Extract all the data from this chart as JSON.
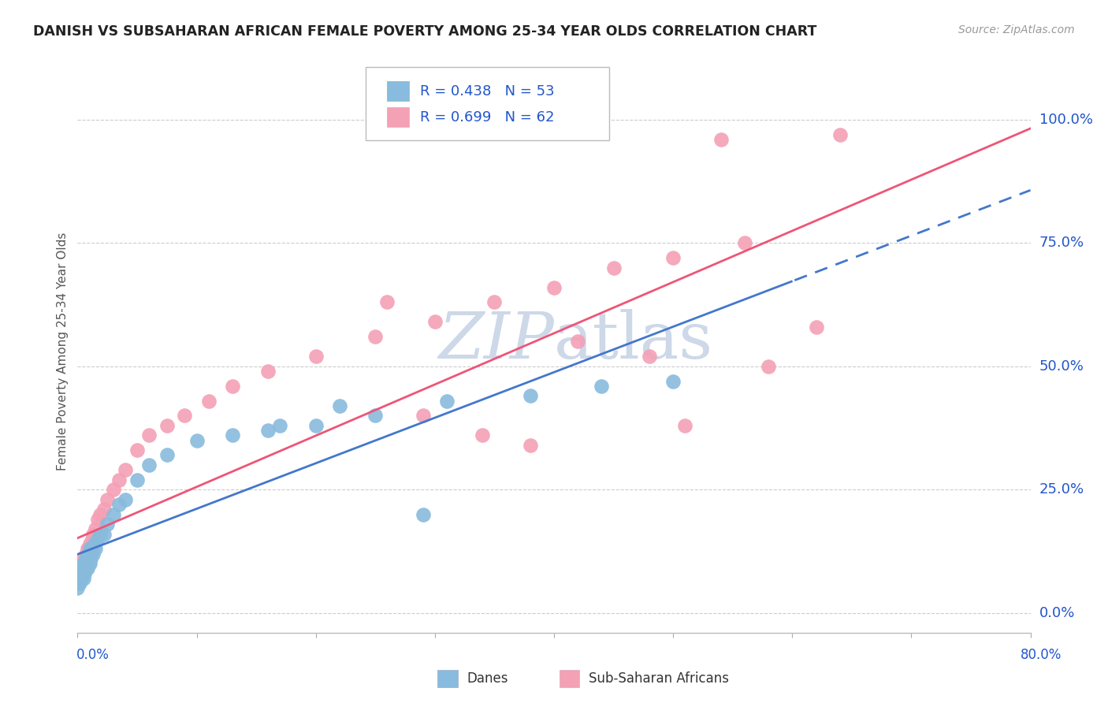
{
  "title": "DANISH VS SUBSAHARAN AFRICAN FEMALE POVERTY AMONG 25-34 YEAR OLDS CORRELATION CHART",
  "source": "Source: ZipAtlas.com",
  "ylabel": "Female Poverty Among 25-34 Year Olds",
  "ytick_labels": [
    "0.0%",
    "25.0%",
    "50.0%",
    "75.0%",
    "100.0%"
  ],
  "ytick_values": [
    0.0,
    0.25,
    0.5,
    0.75,
    1.0
  ],
  "xmin": 0.0,
  "xmax": 0.8,
  "ymin": -0.04,
  "ymax": 1.1,
  "danes_color": "#88bbdd",
  "subsaharan_color": "#f4a0b5",
  "danes_line_color": "#4477cc",
  "subsaharan_line_color": "#ee5577",
  "danes_R": 0.438,
  "danes_N": 53,
  "subsaharan_R": 0.699,
  "subsaharan_N": 62,
  "background_color": "#ffffff",
  "grid_color": "#cccccc",
  "watermark_color": "#cdd8e8",
  "title_color": "#222222",
  "axis_label_color": "#2255cc",
  "danes_x": [
    0.0,
    0.001,
    0.001,
    0.001,
    0.002,
    0.002,
    0.002,
    0.002,
    0.003,
    0.003,
    0.003,
    0.004,
    0.004,
    0.005,
    0.005,
    0.005,
    0.006,
    0.006,
    0.007,
    0.007,
    0.008,
    0.008,
    0.009,
    0.009,
    0.01,
    0.01,
    0.011,
    0.012,
    0.013,
    0.014,
    0.015,
    0.017,
    0.019,
    0.022,
    0.025,
    0.03,
    0.035,
    0.04,
    0.05,
    0.06,
    0.075,
    0.1,
    0.13,
    0.16,
    0.2,
    0.25,
    0.31,
    0.38,
    0.44,
    0.5,
    0.22,
    0.17,
    0.29
  ],
  "danes_y": [
    0.05,
    0.06,
    0.07,
    0.08,
    0.06,
    0.07,
    0.08,
    0.09,
    0.07,
    0.08,
    0.09,
    0.08,
    0.09,
    0.07,
    0.08,
    0.1,
    0.08,
    0.1,
    0.09,
    0.11,
    0.09,
    0.11,
    0.1,
    0.12,
    0.1,
    0.13,
    0.11,
    0.13,
    0.12,
    0.14,
    0.13,
    0.15,
    0.16,
    0.16,
    0.18,
    0.2,
    0.22,
    0.23,
    0.27,
    0.3,
    0.32,
    0.35,
    0.36,
    0.37,
    0.38,
    0.4,
    0.43,
    0.44,
    0.46,
    0.47,
    0.42,
    0.38,
    0.2
  ],
  "subsaharan_x": [
    0.0,
    0.001,
    0.001,
    0.001,
    0.002,
    0.002,
    0.002,
    0.002,
    0.003,
    0.003,
    0.003,
    0.004,
    0.004,
    0.005,
    0.005,
    0.006,
    0.006,
    0.007,
    0.007,
    0.008,
    0.008,
    0.009,
    0.009,
    0.01,
    0.01,
    0.011,
    0.012,
    0.013,
    0.015,
    0.017,
    0.019,
    0.022,
    0.025,
    0.03,
    0.035,
    0.04,
    0.05,
    0.06,
    0.075,
    0.09,
    0.11,
    0.13,
    0.16,
    0.2,
    0.25,
    0.3,
    0.35,
    0.4,
    0.45,
    0.5,
    0.56,
    0.62,
    0.58,
    0.64,
    0.54,
    0.48,
    0.42,
    0.38,
    0.34,
    0.29,
    0.26,
    0.51
  ],
  "subsaharan_y": [
    0.06,
    0.07,
    0.08,
    0.09,
    0.07,
    0.08,
    0.09,
    0.1,
    0.08,
    0.09,
    0.1,
    0.09,
    0.11,
    0.08,
    0.1,
    0.09,
    0.11,
    0.1,
    0.12,
    0.1,
    0.13,
    0.11,
    0.13,
    0.12,
    0.14,
    0.13,
    0.15,
    0.16,
    0.17,
    0.19,
    0.2,
    0.21,
    0.23,
    0.25,
    0.27,
    0.29,
    0.33,
    0.36,
    0.38,
    0.4,
    0.43,
    0.46,
    0.49,
    0.52,
    0.56,
    0.59,
    0.63,
    0.66,
    0.7,
    0.72,
    0.75,
    0.58,
    0.5,
    0.97,
    0.96,
    0.52,
    0.55,
    0.34,
    0.36,
    0.4,
    0.63,
    0.38
  ],
  "danes_line_x_solid_end": 0.6,
  "subsaharan_line_x_solid_end": 0.8
}
